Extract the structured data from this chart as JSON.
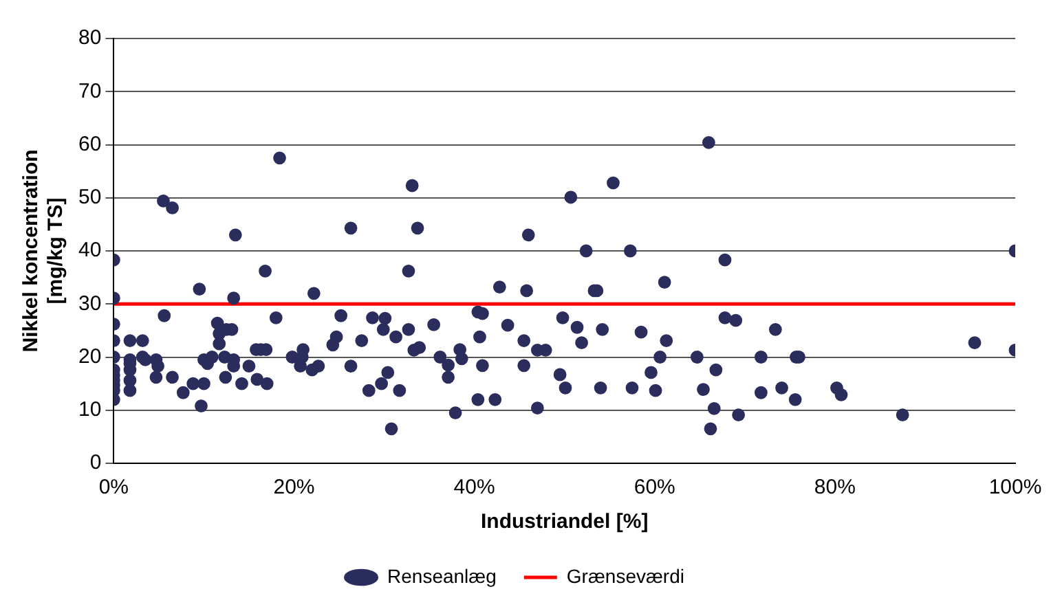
{
  "chart_data": {
    "type": "scatter",
    "xlabel": "Industriandel [%]",
    "ylabel": "Nikkel koncentration\n[mg/kg TS]",
    "xlim": [
      0,
      100
    ],
    "xticks": [
      {
        "value": 0,
        "label": "0%"
      },
      {
        "value": 20,
        "label": "20%"
      },
      {
        "value": 40,
        "label": "40%"
      },
      {
        "value": 60,
        "label": "60%"
      },
      {
        "value": 80,
        "label": "80%"
      },
      {
        "value": 100,
        "label": "100%"
      }
    ],
    "ylim": [
      0,
      80
    ],
    "yticks": [
      0,
      10,
      20,
      30,
      40,
      50,
      60,
      70,
      80
    ],
    "grid": "y",
    "legend": "bottom",
    "marker": "circle",
    "series": [
      {
        "name": "Renseanlæg",
        "color": "#2b2d5c",
        "x": [
          0,
          0,
          0,
          0,
          0,
          0,
          0,
          0,
          0,
          0,
          0,
          1.8,
          1.8,
          1.8,
          1.8,
          1.8,
          1.8,
          3.2,
          3.2,
          3.5,
          4.7,
          4.9,
          4.7,
          5.5,
          6.5,
          5.6,
          6.5,
          7.7,
          8.8,
          10.0,
          9.7,
          9.5,
          10.0,
          10.4,
          10.9,
          11.5,
          11.7,
          11.7,
          12.5,
          13.1,
          12.3,
          13.3,
          13.3,
          12.4,
          13.3,
          13.5,
          14.2,
          15.0,
          15.8,
          16.3,
          16.9,
          15.9,
          17.0,
          16.8,
          18.0,
          18.4,
          19.8,
          20.7,
          20.9,
          21.0,
          22.0,
          22.7,
          22.2,
          24.3,
          24.7,
          25.2,
          26.3,
          26.3,
          27.5,
          28.3,
          28.7,
          33.1,
          33.7,
          32.7,
          30.1,
          29.9,
          31.3,
          32.7,
          33.9,
          33.3,
          35.5,
          36.2,
          37.1,
          37.1,
          38.4,
          38.6,
          37.9,
          30.8,
          29.7,
          30.4,
          31.7,
          40.4,
          40.9,
          40.6,
          40.9,
          40.4,
          42.3,
          42.8,
          43.7,
          45.5,
          45.5,
          46.0,
          45.8,
          47.0,
          47.9,
          47.0,
          49.8,
          49.5,
          50.1,
          50.7,
          51.4,
          51.9,
          52.4,
          53.3,
          53.6,
          54.2,
          54.0,
          55.4,
          57.3,
          57.5,
          58.5,
          59.6,
          60.1,
          60.6,
          61.1,
          61.3,
          64.7,
          66.0,
          67.8,
          67.8,
          69.0,
          73.4,
          66.8,
          65.4,
          66.6,
          66.2,
          69.3,
          71.8,
          71.8,
          74.1,
          75.6,
          75.7,
          76.0,
          80.2,
          80.7,
          87.5,
          95.5,
          100,
          100
        ],
        "values": [
          38.3,
          31.1,
          26.2,
          23.1,
          20.0,
          17.6,
          16.6,
          15.6,
          14.7,
          13.7,
          12.0,
          23.1,
          19.5,
          18.8,
          17.6,
          15.6,
          13.7,
          23.1,
          20.0,
          19.5,
          19.5,
          18.3,
          16.2,
          49.4,
          48.1,
          27.8,
          16.2,
          13.3,
          15.0,
          15.0,
          10.8,
          32.8,
          19.5,
          18.8,
          20.0,
          26.4,
          24.4,
          22.5,
          25.2,
          25.2,
          20.0,
          19.5,
          18.3,
          16.2,
          31.1,
          43.0,
          15.0,
          18.3,
          21.4,
          21.4,
          21.4,
          15.8,
          15.0,
          36.2,
          27.4,
          57.5,
          20.0,
          18.3,
          20.0,
          21.4,
          17.6,
          18.3,
          32.0,
          22.3,
          23.8,
          27.8,
          44.3,
          18.3,
          23.1,
          13.7,
          27.4,
          52.3,
          44.3,
          36.2,
          27.3,
          25.2,
          23.8,
          25.2,
          21.8,
          21.3,
          26.1,
          20.0,
          18.5,
          16.2,
          21.4,
          19.7,
          9.5,
          6.5,
          15.0,
          17.1,
          13.7,
          28.5,
          28.2,
          23.8,
          18.4,
          12.0,
          12.0,
          33.2,
          26.0,
          23.1,
          18.4,
          43.0,
          32.5,
          21.3,
          21.3,
          10.4,
          27.4,
          16.7,
          14.2,
          50.1,
          25.6,
          22.7,
          40.0,
          32.5,
          32.5,
          25.2,
          14.2,
          52.8,
          40.0,
          14.2,
          24.7,
          17.1,
          13.7,
          20.0,
          34.1,
          23.1,
          20.0,
          60.4,
          38.3,
          27.4,
          26.9,
          25.2,
          17.6,
          13.9,
          10.3,
          6.5,
          9.1,
          20.0,
          13.3,
          14.2,
          12.0,
          20.0,
          20.0,
          14.2,
          12.9,
          9.1,
          22.7,
          40.0,
          21.3
        ]
      },
      {
        "name": "Grænseværdi",
        "type": "line",
        "color": "#ff0000",
        "marker": "none",
        "x": [
          0,
          100
        ],
        "values": [
          30,
          30
        ]
      }
    ]
  }
}
